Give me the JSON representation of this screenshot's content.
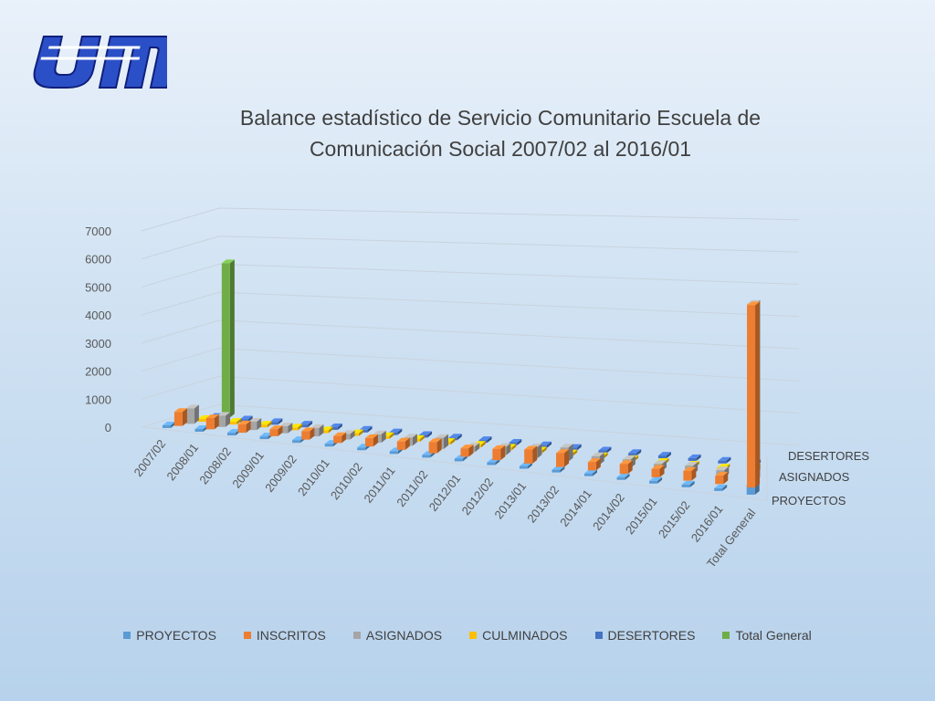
{
  "logo": {
    "text": "USM",
    "colors": [
      "#2b4fc7",
      "#0f1f7a",
      "#ffffff"
    ]
  },
  "chart_data": {
    "type": "bar",
    "style": "3d-clustered-column",
    "title_lines": [
      "Balance estadístico de Servicio Comunitario Escuela de",
      "Comunicación Social 2007/02 al 2016/01"
    ],
    "xlabel": "",
    "ylabel": "",
    "ylim": [
      0,
      7000
    ],
    "yticks": [
      "0",
      "1000",
      "2000",
      "3000",
      "4000",
      "5000",
      "6000",
      "7000"
    ],
    "grid": true,
    "categories": [
      "2007/02",
      "2008/01",
      "2008/02",
      "2009/01",
      "2009/02",
      "2010/01",
      "2010/02",
      "2011/01",
      "2011/02",
      "2012/01",
      "2012/02",
      "2013/01",
      "2013/02",
      "2014/01",
      "2014/02",
      "2015/01",
      "2015/02",
      "2016/01",
      "Total General"
    ],
    "depth_labels": [
      "PROYECTOS",
      "ASIGNADOS",
      "DESERTORES"
    ],
    "legend_position": "bottom",
    "series": [
      {
        "name": "PROYECTOS",
        "color": "#5b9bd5",
        "values": [
          20,
          20,
          20,
          20,
          20,
          20,
          20,
          20,
          20,
          20,
          20,
          20,
          20,
          20,
          20,
          20,
          20,
          20,
          350
        ]
      },
      {
        "name": "INSCRITOS",
        "color": "#ed7d31",
        "values": [
          500,
          400,
          300,
          250,
          300,
          250,
          300,
          300,
          400,
          300,
          400,
          500,
          500,
          300,
          350,
          300,
          350,
          300,
          6500
        ]
      },
      {
        "name": "ASIGNADOS",
        "color": "#a5a5a5",
        "values": [
          550,
          400,
          300,
          250,
          300,
          200,
          300,
          300,
          400,
          200,
          300,
          400,
          500,
          300,
          300,
          250,
          300,
          250,
          6300
        ]
      },
      {
        "name": "CULMINADOS",
        "color": "#ffc000",
        "values": [
          20,
          20,
          20,
          20,
          20,
          20,
          20,
          20,
          20,
          20,
          20,
          20,
          20,
          20,
          20,
          20,
          20,
          20,
          200
        ]
      },
      {
        "name": "DESERTORES",
        "color": "#4472c4",
        "values": [
          20,
          20,
          20,
          20,
          20,
          20,
          20,
          20,
          20,
          20,
          20,
          20,
          20,
          20,
          20,
          20,
          20,
          20,
          20
        ]
      },
      {
        "name": "Total General",
        "color": "#70ad47",
        "values": [
          5500,
          0,
          0,
          0,
          0,
          0,
          0,
          0,
          0,
          0,
          0,
          0,
          0,
          0,
          0,
          0,
          0,
          0,
          0
        ]
      }
    ]
  }
}
